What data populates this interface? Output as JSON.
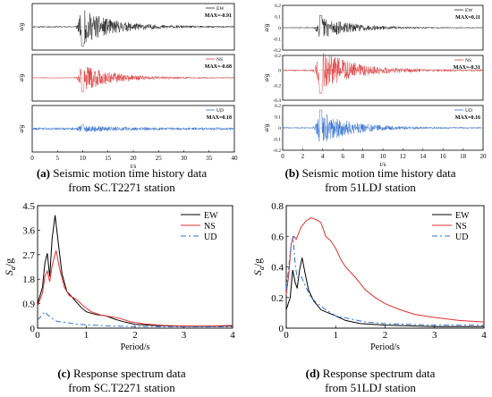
{
  "captions": {
    "a": {
      "label": "(a)",
      "line1": "Seismic motion time history data",
      "line2": "from SC.T2271 station"
    },
    "b": {
      "label": "(b)",
      "line1": "Seismic motion time history data",
      "line2": "from 51LDJ station"
    },
    "c": {
      "label": "(c)",
      "line1": "Response spectrum data",
      "line2": "from SC.T2271 station"
    },
    "d": {
      "label": "(d)",
      "line1": "Response spectrum data",
      "line2": "from 51LDJ station"
    }
  },
  "chart_data": [
    {
      "id": "a",
      "type": "line",
      "xlabel": "t/s",
      "xlim": [
        0,
        40
      ],
      "xticks": [
        "0",
        "5",
        "10",
        "15",
        "20",
        "25",
        "30",
        "35",
        "40"
      ],
      "panels": [
        {
          "name": "EW",
          "annotation": "MAX=-0.91",
          "ylabel": "a/g",
          "color": "#222222",
          "peak_t": 10,
          "pga": 0.91
        },
        {
          "name": "NS",
          "annotation": "MAX=-0.68",
          "ylabel": "a/g",
          "color": "#e04040",
          "peak_t": 10,
          "pga": 0.68
        },
        {
          "name": "UD",
          "annotation": "MAX=0.18",
          "ylabel": "a/g",
          "color": "#2f6fd0",
          "peak_t": 10,
          "pga": 0.18
        }
      ]
    },
    {
      "id": "b",
      "type": "line",
      "xlabel": "t/s",
      "xlim": [
        0,
        20
      ],
      "xticks": [
        "0",
        "2",
        "4",
        "6",
        "8",
        "10",
        "12",
        "14",
        "16",
        "18",
        "20"
      ],
      "panels": [
        {
          "name": "EW",
          "annotation": "MAX=0.11",
          "ylabel": "a/g",
          "color": "#222222",
          "ylim": [
            -0.2,
            0.2
          ],
          "yticks": [
            "0.2",
            "0.1",
            "0",
            "-0.1",
            "-0.2"
          ],
          "peak_t": 3.8,
          "pga": 0.11
        },
        {
          "name": "NS",
          "annotation": "MAX=-0.31",
          "ylabel": "a/g",
          "color": "#e04040",
          "ylim": [
            -0.4,
            0.2
          ],
          "yticks": [
            "0.2",
            "0",
            "-0.2",
            "-0.4"
          ],
          "peak_t": 3.8,
          "pga": 0.31
        },
        {
          "name": "UD",
          "annotation": "MAX=0.16",
          "ylabel": "a/g",
          "color": "#2f6fd0",
          "ylim": [
            -0.2,
            0.2
          ],
          "yticks": [
            "0.2",
            "0.1",
            "0",
            "-0.1",
            "-0.2"
          ],
          "peak_t": 3.8,
          "pga": 0.16
        }
      ]
    },
    {
      "id": "c",
      "type": "line",
      "xlabel": "Period/s",
      "ylabel": "Sa/g",
      "ylabel_main": "S",
      "ylabel_sub": "a",
      "ylabel_unit": "/g",
      "xlim": [
        0,
        4
      ],
      "ylim": [
        0,
        4.5
      ],
      "xticks": [
        "0",
        "1",
        "2",
        "3",
        "4"
      ],
      "yticks": [
        "0",
        "0.9",
        "1.8",
        "2.7",
        "3.6",
        "4.5"
      ],
      "legend_position": "top-right",
      "series": [
        {
          "name": "EW",
          "color": "#000000",
          "dash": "",
          "points": [
            [
              0,
              0.9
            ],
            [
              0.1,
              1.5
            ],
            [
              0.15,
              2.4
            ],
            [
              0.2,
              2.75
            ],
            [
              0.25,
              1.9
            ],
            [
              0.3,
              3.3
            ],
            [
              0.36,
              4.15
            ],
            [
              0.42,
              3.2
            ],
            [
              0.5,
              2.0
            ],
            [
              0.6,
              1.35
            ],
            [
              0.7,
              1.15
            ],
            [
              0.8,
              0.95
            ],
            [
              0.9,
              0.75
            ],
            [
              1.0,
              0.6
            ],
            [
              1.2,
              0.5
            ],
            [
              1.4,
              0.45
            ],
            [
              1.6,
              0.32
            ],
            [
              1.8,
              0.22
            ],
            [
              2.0,
              0.14
            ],
            [
              2.5,
              0.09
            ],
            [
              3.0,
              0.07
            ],
            [
              3.5,
              0.07
            ],
            [
              4.0,
              0.08
            ]
          ]
        },
        {
          "name": "NS",
          "color": "#e03030",
          "dash": "",
          "points": [
            [
              0,
              0.8
            ],
            [
              0.1,
              1.3
            ],
            [
              0.15,
              1.9
            ],
            [
              0.2,
              2.1
            ],
            [
              0.25,
              1.7
            ],
            [
              0.3,
              2.3
            ],
            [
              0.38,
              2.85
            ],
            [
              0.45,
              2.2
            ],
            [
              0.55,
              1.5
            ],
            [
              0.65,
              1.2
            ],
            [
              0.8,
              1.05
            ],
            [
              0.95,
              0.8
            ],
            [
              1.1,
              0.6
            ],
            [
              1.3,
              0.48
            ],
            [
              1.5,
              0.42
            ],
            [
              1.7,
              0.35
            ],
            [
              1.9,
              0.24
            ],
            [
              2.2,
              0.15
            ],
            [
              2.6,
              0.1
            ],
            [
              3.0,
              0.08
            ],
            [
              3.5,
              0.08
            ],
            [
              4.0,
              0.1
            ]
          ]
        },
        {
          "name": "UD",
          "color": "#2f6fd0",
          "dash": "6,3,2,3",
          "points": [
            [
              0,
              0.3
            ],
            [
              0.1,
              0.5
            ],
            [
              0.15,
              0.6
            ],
            [
              0.2,
              0.5
            ],
            [
              0.3,
              0.35
            ],
            [
              0.4,
              0.25
            ],
            [
              0.6,
              0.2
            ],
            [
              0.8,
              0.15
            ],
            [
              1.0,
              0.12
            ],
            [
              1.5,
              0.08
            ],
            [
              2.0,
              0.06
            ],
            [
              3.0,
              0.05
            ],
            [
              4.0,
              0.05
            ]
          ]
        }
      ]
    },
    {
      "id": "d",
      "type": "line",
      "xlabel": "Period/s",
      "ylabel": "Sa/g",
      "ylabel_main": "S",
      "ylabel_sub": "a",
      "ylabel_unit": "/g",
      "xlim": [
        0,
        4
      ],
      "ylim": [
        0,
        0.8
      ],
      "xticks": [
        "0",
        "1",
        "2",
        "3",
        "4"
      ],
      "yticks": [
        "0",
        "0.2",
        "0.4",
        "0.6",
        "0.8"
      ],
      "legend_position": "top-right",
      "series": [
        {
          "name": "EW",
          "color": "#000000",
          "dash": "",
          "points": [
            [
              0,
              0.12
            ],
            [
              0.08,
              0.2
            ],
            [
              0.13,
              0.38
            ],
            [
              0.18,
              0.3
            ],
            [
              0.22,
              0.26
            ],
            [
              0.27,
              0.38
            ],
            [
              0.32,
              0.46
            ],
            [
              0.38,
              0.36
            ],
            [
              0.45,
              0.25
            ],
            [
              0.55,
              0.18
            ],
            [
              0.7,
              0.12
            ],
            [
              0.85,
              0.1
            ],
            [
              1.0,
              0.08
            ],
            [
              1.2,
              0.05
            ],
            [
              1.5,
              0.03
            ],
            [
              2.0,
              0.02
            ],
            [
              3.0,
              0.01
            ],
            [
              4.0,
              0.01
            ]
          ]
        },
        {
          "name": "NS",
          "color": "#e03030",
          "dash": "",
          "points": [
            [
              0,
              0.22
            ],
            [
              0.05,
              0.35
            ],
            [
              0.1,
              0.55
            ],
            [
              0.15,
              0.6
            ],
            [
              0.2,
              0.58
            ],
            [
              0.3,
              0.66
            ],
            [
              0.4,
              0.7
            ],
            [
              0.5,
              0.72
            ],
            [
              0.6,
              0.71
            ],
            [
              0.7,
              0.69
            ],
            [
              0.8,
              0.6
            ],
            [
              0.9,
              0.57
            ],
            [
              1.0,
              0.52
            ],
            [
              1.1,
              0.45
            ],
            [
              1.2,
              0.4
            ],
            [
              1.4,
              0.33
            ],
            [
              1.6,
              0.25
            ],
            [
              1.8,
              0.2
            ],
            [
              2.0,
              0.16
            ],
            [
              2.3,
              0.12
            ],
            [
              2.6,
              0.09
            ],
            [
              3.0,
              0.07
            ],
            [
              3.5,
              0.05
            ],
            [
              4.0,
              0.04
            ]
          ]
        },
        {
          "name": "UD",
          "color": "#2f6fd0",
          "dash": "6,3,2,3",
          "points": [
            [
              0,
              0.25
            ],
            [
              0.05,
              0.4
            ],
            [
              0.1,
              0.55
            ],
            [
              0.14,
              0.6
            ],
            [
              0.18,
              0.42
            ],
            [
              0.22,
              0.33
            ],
            [
              0.3,
              0.34
            ],
            [
              0.38,
              0.28
            ],
            [
              0.5,
              0.2
            ],
            [
              0.6,
              0.17
            ],
            [
              0.8,
              0.12
            ],
            [
              1.0,
              0.08
            ],
            [
              1.3,
              0.06
            ],
            [
              1.6,
              0.04
            ],
            [
              2.0,
              0.03
            ],
            [
              3.0,
              0.02
            ],
            [
              4.0,
              0.02
            ]
          ]
        }
      ]
    }
  ]
}
